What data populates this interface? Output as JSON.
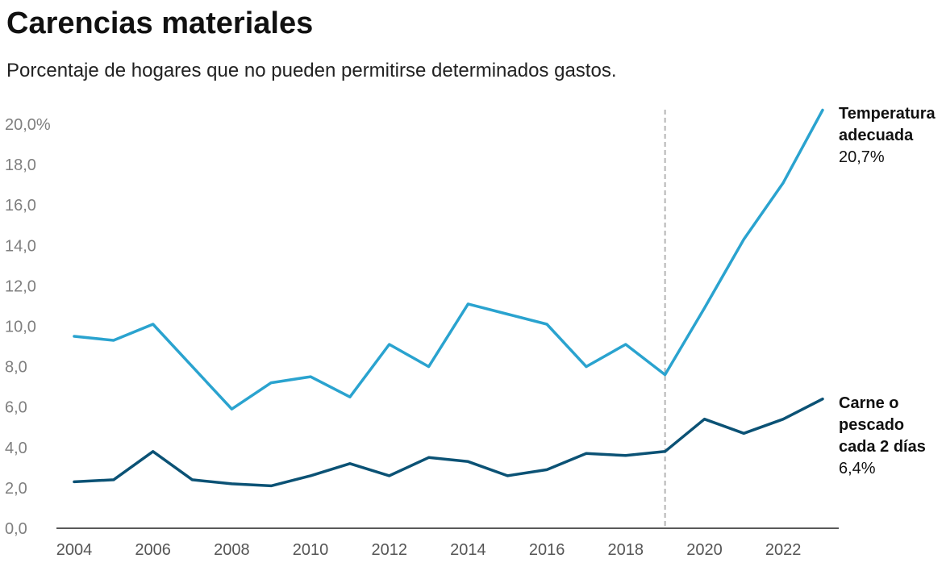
{
  "title": "Carencias materiales",
  "subtitle": "Porcentaje de hogares que no pueden permitirse determinados gastos.",
  "chart_data": {
    "type": "line",
    "x": [
      2004,
      2005,
      2006,
      2007,
      2008,
      2009,
      2010,
      2011,
      2012,
      2013,
      2014,
      2015,
      2016,
      2017,
      2018,
      2019,
      2020,
      2021,
      2022,
      2023
    ],
    "xticks": [
      "2004",
      "2006",
      "2008",
      "2010",
      "2012",
      "2014",
      "2016",
      "2018",
      "2020",
      "2022"
    ],
    "yticks": [
      "0,0",
      "2,0",
      "4,0",
      "6,0",
      "8,0",
      "10,0",
      "12,0",
      "14,0",
      "16,0",
      "18,0",
      "20,0%"
    ],
    "ylim": [
      0,
      20
    ],
    "reference_line_x": 2019,
    "series": [
      {
        "name_lines": [
          "Temperatura",
          "adecuada"
        ],
        "end_label": "20,7%",
        "color": "#2aa3cf",
        "values": [
          9.5,
          9.3,
          10.1,
          8.0,
          5.9,
          7.2,
          7.5,
          6.5,
          9.1,
          8.0,
          11.1,
          10.6,
          10.1,
          8.0,
          9.1,
          7.6,
          10.9,
          14.3,
          17.1,
          20.7
        ]
      },
      {
        "name_lines": [
          "Carne o",
          "pescado",
          "cada 2 días"
        ],
        "end_label": "6,4%",
        "color": "#0b5275",
        "values": [
          2.3,
          2.4,
          3.8,
          2.4,
          2.2,
          2.1,
          2.6,
          3.2,
          2.6,
          3.5,
          3.3,
          2.6,
          2.9,
          3.7,
          3.6,
          3.8,
          5.4,
          4.7,
          5.4,
          6.4
        ]
      }
    ]
  }
}
